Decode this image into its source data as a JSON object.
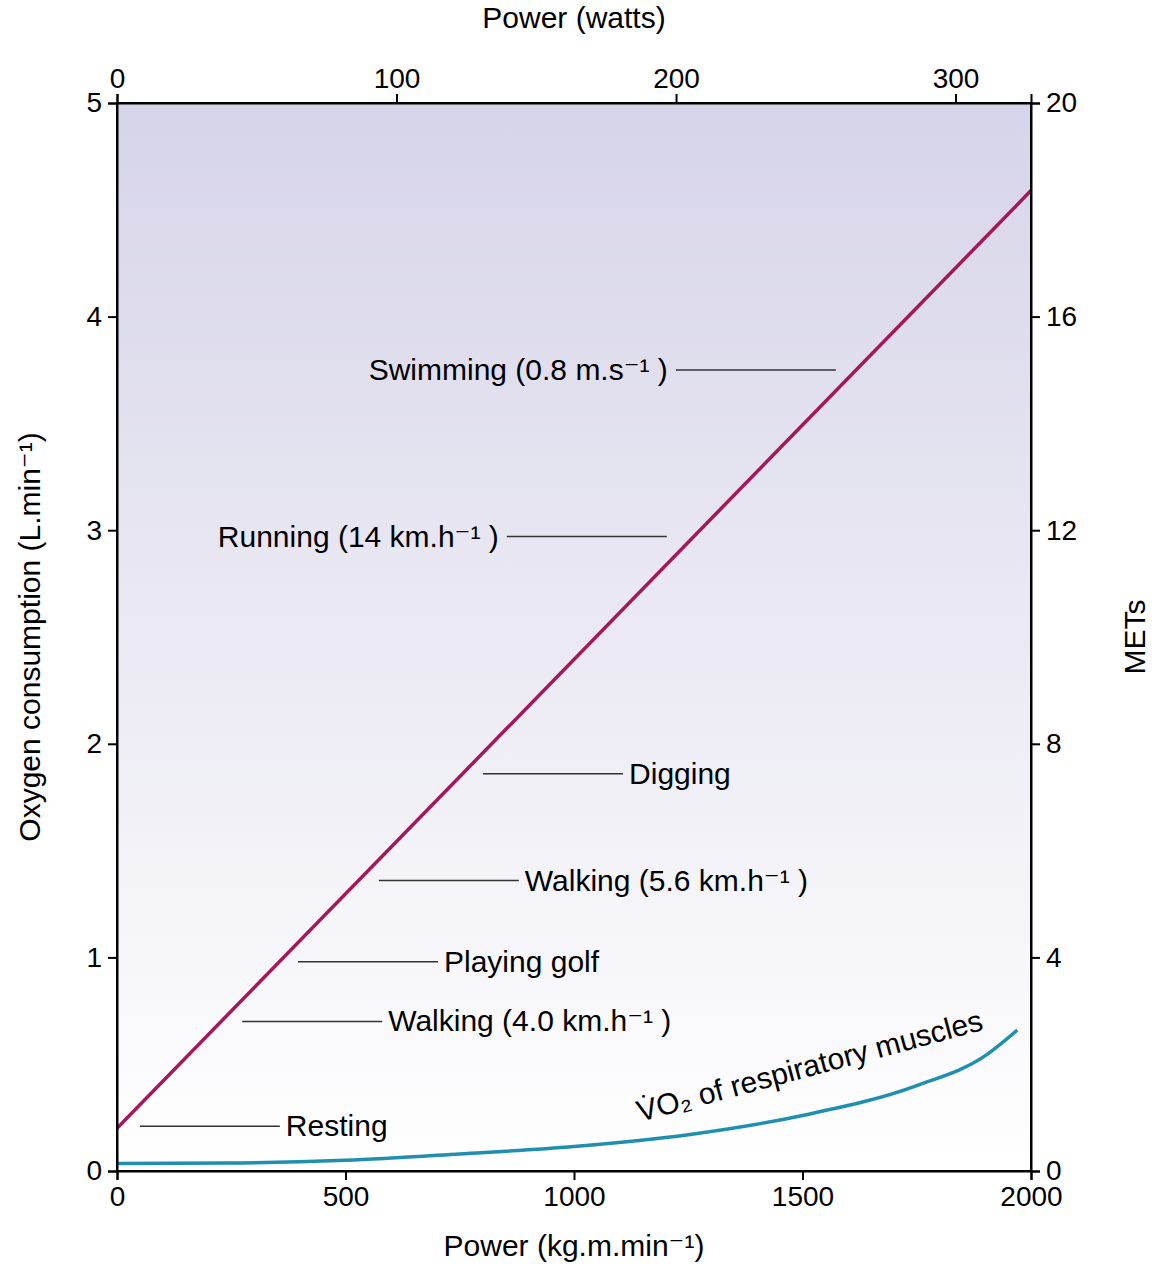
{
  "chart_data": {
    "type": "line",
    "xlabel": "Power (kg.m.min⁻¹)",
    "ylabel": "Oxygen consumption (L.min⁻¹)",
    "x2label": "Power (watts)",
    "y2label": "METs",
    "xlim": [
      0,
      2000
    ],
    "xticks": [
      0,
      500,
      1000,
      1500,
      2000
    ],
    "ylim": [
      0,
      5
    ],
    "yticks": [
      0,
      1,
      2,
      3,
      4,
      5
    ],
    "x2lim": [
      0,
      327
    ],
    "x2ticks": [
      0,
      100,
      200,
      300
    ],
    "y2lim": [
      0,
      20
    ],
    "y2ticks": [
      0,
      4,
      8,
      12,
      16,
      20
    ],
    "grid": false,
    "series": [
      {
        "color": "#a3185a",
        "x": [
          0,
          2000
        ],
        "values": [
          0.2,
          4.59
        ]
      },
      {
        "name": "V̇O₂ of respiratory muscles",
        "color": "#1f8fad",
        "x": [
          0,
          250,
          500,
          750,
          1000,
          1250,
          1500,
          1750,
          1900,
          1970
        ],
        "values": [
          0.035,
          0.037,
          0.05,
          0.08,
          0.115,
          0.17,
          0.26,
          0.4,
          0.54,
          0.66
        ]
      }
    ],
    "annotations": [
      {
        "text": "Resting",
        "x": 50,
        "y": 0.21
      },
      {
        "text": "Walking (4.0 km.h⁻¹ )",
        "x": 274,
        "y": 0.7
      },
      {
        "text": "Playing golf",
        "x": 396,
        "y": 0.98
      },
      {
        "text": "Walking (5.6 km.h⁻¹ )",
        "x": 573,
        "y": 1.36
      },
      {
        "text": "Digging",
        "x": 801,
        "y": 1.86
      },
      {
        "text": "Running (14 km.h⁻¹ )",
        "x": 1203,
        "y": 2.97
      },
      {
        "text": "Swimming (0.8 m.s⁻¹ )",
        "x": 1573,
        "y": 3.75
      }
    ]
  }
}
